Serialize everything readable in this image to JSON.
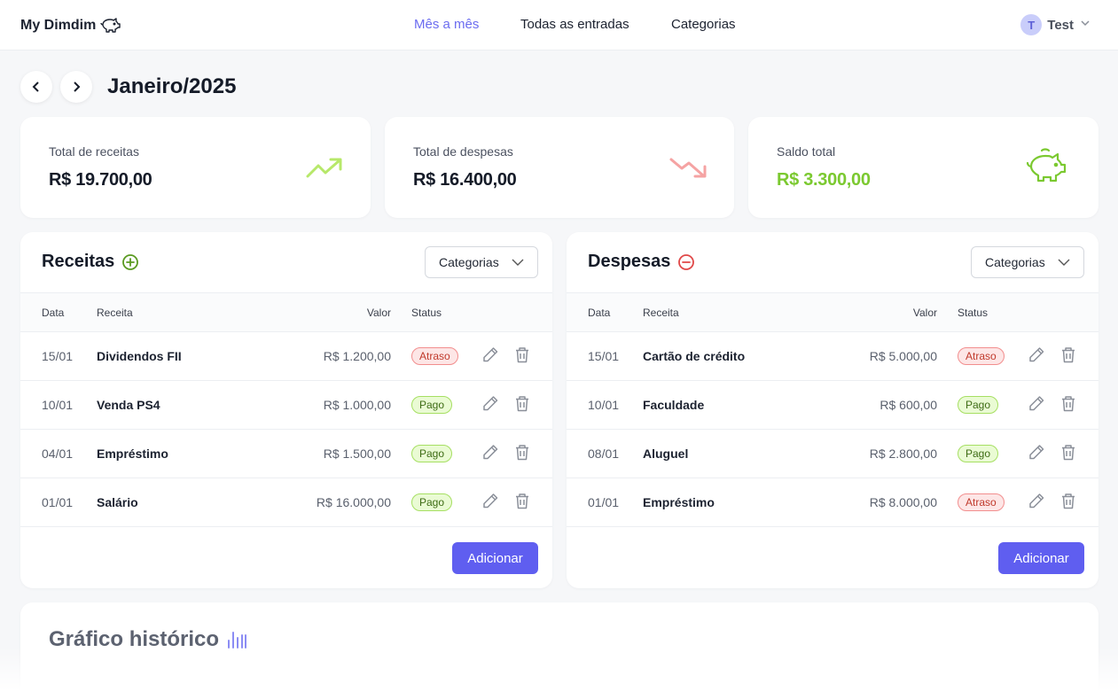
{
  "app": {
    "name": "My Dimdim"
  },
  "nav": {
    "month": "Mês a mês",
    "all": "Todas as entradas",
    "categories": "Categorias"
  },
  "user": {
    "initial": "T",
    "name": "Test"
  },
  "month": {
    "title": "Janeiro/2025"
  },
  "summary": {
    "income_label": "Total de receitas",
    "income_value": "R$ 19.700,00",
    "expense_label": "Total de despesas",
    "expense_value": "R$ 16.400,00",
    "balance_label": "Saldo total",
    "balance_value": "R$ 3.300,00"
  },
  "colors": {
    "accent": "#5f5ef0",
    "positive": "#7bc930",
    "negative": "#f08a8a"
  },
  "income": {
    "title": "Receitas",
    "filter": "Categorias",
    "headers": {
      "date": "Data",
      "name": "Receita",
      "value": "Valor",
      "status": "Status"
    },
    "rows": [
      {
        "date": "15/01",
        "name": "Dividendos FII",
        "value": "R$ 1.200,00",
        "status": "Atraso"
      },
      {
        "date": "10/01",
        "name": "Venda PS4",
        "value": "R$ 1.000,00",
        "status": "Pago"
      },
      {
        "date": "04/01",
        "name": "Empréstimo",
        "value": "R$ 1.500,00",
        "status": "Pago"
      },
      {
        "date": "01/01",
        "name": "Salário",
        "value": "R$ 16.000,00",
        "status": "Pago"
      }
    ],
    "add": "Adicionar"
  },
  "expense": {
    "title": "Despesas",
    "filter": "Categorias",
    "headers": {
      "date": "Data",
      "name": "Receita",
      "value": "Valor",
      "status": "Status"
    },
    "rows": [
      {
        "date": "15/01",
        "name": "Cartão de crédito",
        "value": "R$ 5.000,00",
        "status": "Atraso"
      },
      {
        "date": "10/01",
        "name": "Faculdade",
        "value": "R$ 600,00",
        "status": "Pago"
      },
      {
        "date": "08/01",
        "name": "Aluguel",
        "value": "R$ 2.800,00",
        "status": "Pago"
      },
      {
        "date": "01/01",
        "name": "Empréstimo",
        "value": "R$ 8.000,00",
        "status": "Atraso"
      }
    ],
    "add": "Adicionar"
  },
  "history": {
    "title": "Gráfico histórico"
  }
}
